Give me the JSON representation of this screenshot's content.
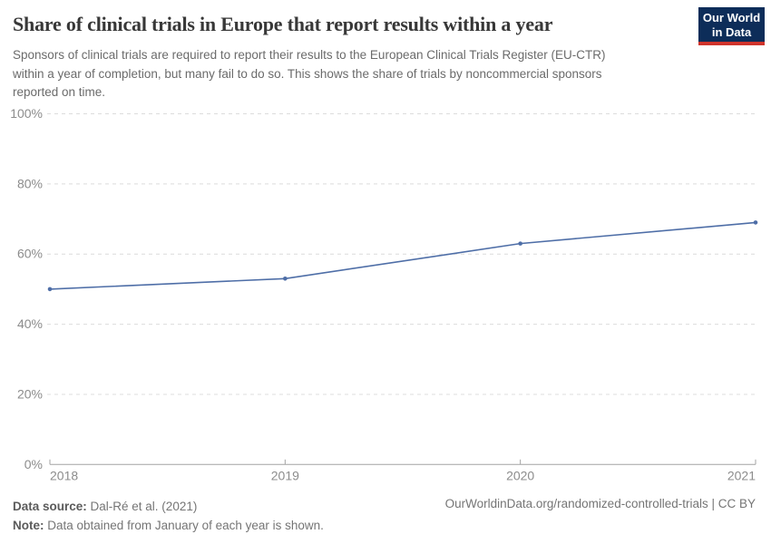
{
  "header": {
    "title": "Share of clinical trials in Europe that report results within a year",
    "subtitle_lines": [
      "Sponsors of clinical trials are required to report their results to the European Clinical Trials Register (EU-CTR)",
      "within a year of completion, but many fail to do so. This shows the share of trials by noncommercial sponsors",
      "reported on time."
    ],
    "logo": {
      "line1": "Our World",
      "line2": "in Data",
      "bg_color": "#0d2d59",
      "accent_color": "#d0342c"
    }
  },
  "chart_data": {
    "type": "line",
    "title": "Share of clinical trials in Europe that report results within a year",
    "x": [
      "2018",
      "2019",
      "2020",
      "2021"
    ],
    "values": [
      50,
      53,
      63,
      69
    ],
    "ylim": [
      0,
      100
    ],
    "yticks": [
      0,
      20,
      40,
      60,
      80,
      100
    ],
    "ytick_suffix": "%",
    "grid": "horizontal-dashed",
    "legend": "none",
    "colors": {
      "line": "#4e6ea7",
      "grid": "#dcdcdc",
      "axis": "#a3a3a3",
      "tick_text": "#8c8c8c"
    }
  },
  "footer": {
    "source_label": "Data source:",
    "source_value": " Dal-Ré et al. (2021)",
    "note_label": "Note:",
    "note_value": " Data obtained from January of each year is shown.",
    "link": "OurWorldinData.org/randomized-controlled-trials | CC BY"
  }
}
